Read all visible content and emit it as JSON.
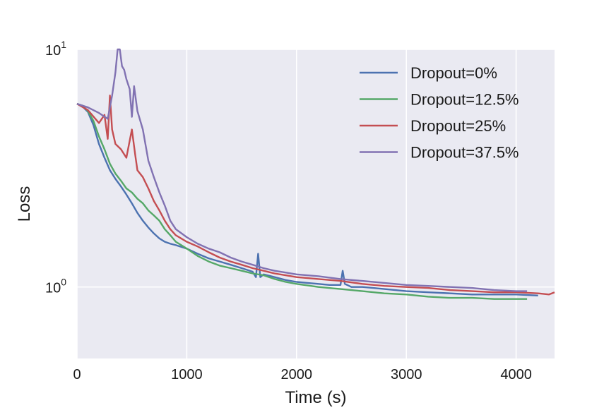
{
  "chart_data": {
    "type": "line",
    "title": "",
    "xlabel": "Time (s)",
    "ylabel": "Loss",
    "xlim": [
      0,
      4350
    ],
    "ylim": [
      0.5,
      10
    ],
    "yscale": "log",
    "grid": true,
    "legend_position": "top-right",
    "x_ticks": [
      {
        "value": 0,
        "label": "0"
      },
      {
        "value": 1000,
        "label": "1000"
      },
      {
        "value": 2000,
        "label": "2000"
      },
      {
        "value": 3000,
        "label": "3000"
      },
      {
        "value": 4000,
        "label": "4000"
      }
    ],
    "y_ticks": [
      {
        "value": 1,
        "base": "10",
        "exp": "0"
      },
      {
        "value": 10,
        "base": "10",
        "exp": "1"
      }
    ],
    "series": [
      {
        "name": "Dropout=0%",
        "color": "#4c72b0",
        "points": [
          [
            0,
            5.9
          ],
          [
            50,
            5.75
          ],
          [
            100,
            5.45
          ],
          [
            150,
            4.8
          ],
          [
            200,
            4.0
          ],
          [
            250,
            3.5
          ],
          [
            300,
            3.1
          ],
          [
            350,
            2.85
          ],
          [
            400,
            2.65
          ],
          [
            450,
            2.45
          ],
          [
            500,
            2.25
          ],
          [
            550,
            2.05
          ],
          [
            600,
            1.9
          ],
          [
            650,
            1.78
          ],
          [
            700,
            1.68
          ],
          [
            750,
            1.6
          ],
          [
            800,
            1.55
          ],
          [
            850,
            1.52
          ],
          [
            900,
            1.5
          ],
          [
            1000,
            1.45
          ],
          [
            1100,
            1.38
          ],
          [
            1200,
            1.32
          ],
          [
            1300,
            1.28
          ],
          [
            1400,
            1.24
          ],
          [
            1500,
            1.2
          ],
          [
            1600,
            1.16
          ],
          [
            1630,
            1.1
          ],
          [
            1650,
            1.38
          ],
          [
            1670,
            1.1
          ],
          [
            1700,
            1.13
          ],
          [
            1800,
            1.1
          ],
          [
            1900,
            1.07
          ],
          [
            2000,
            1.05
          ],
          [
            2100,
            1.04
          ],
          [
            2200,
            1.03
          ],
          [
            2300,
            1.02
          ],
          [
            2400,
            1.02
          ],
          [
            2420,
            1.17
          ],
          [
            2440,
            1.03
          ],
          [
            2500,
            1.0
          ],
          [
            2600,
            1.0
          ],
          [
            2700,
            0.99
          ],
          [
            2800,
            0.98
          ],
          [
            2900,
            0.97
          ],
          [
            3000,
            0.96
          ],
          [
            3200,
            0.95
          ],
          [
            3400,
            0.94
          ],
          [
            3600,
            0.93
          ],
          [
            3800,
            0.93
          ],
          [
            4000,
            0.93
          ],
          [
            4200,
            0.92
          ]
        ]
      },
      {
        "name": "Dropout=12.5%",
        "color": "#55a868",
        "points": [
          [
            0,
            5.9
          ],
          [
            50,
            5.8
          ],
          [
            100,
            5.5
          ],
          [
            150,
            5.0
          ],
          [
            200,
            4.3
          ],
          [
            250,
            3.8
          ],
          [
            300,
            3.3
          ],
          [
            350,
            3.0
          ],
          [
            400,
            2.8
          ],
          [
            450,
            2.6
          ],
          [
            500,
            2.5
          ],
          [
            550,
            2.35
          ],
          [
            600,
            2.25
          ],
          [
            650,
            2.1
          ],
          [
            700,
            2.0
          ],
          [
            750,
            1.9
          ],
          [
            800,
            1.75
          ],
          [
            850,
            1.65
          ],
          [
            900,
            1.55
          ],
          [
            950,
            1.5
          ],
          [
            1000,
            1.45
          ],
          [
            1100,
            1.35
          ],
          [
            1200,
            1.28
          ],
          [
            1300,
            1.23
          ],
          [
            1400,
            1.2
          ],
          [
            1500,
            1.17
          ],
          [
            1600,
            1.14
          ],
          [
            1700,
            1.12
          ],
          [
            1800,
            1.08
          ],
          [
            1900,
            1.05
          ],
          [
            2000,
            1.03
          ],
          [
            2200,
            1.0
          ],
          [
            2400,
            0.98
          ],
          [
            2600,
            0.96
          ],
          [
            2800,
            0.94
          ],
          [
            3000,
            0.93
          ],
          [
            3200,
            0.91
          ],
          [
            3400,
            0.9
          ],
          [
            3600,
            0.9
          ],
          [
            3800,
            0.89
          ],
          [
            4000,
            0.89
          ],
          [
            4100,
            0.89
          ]
        ]
      },
      {
        "name": "Dropout=25%",
        "color": "#c44e52",
        "points": [
          [
            0,
            5.9
          ],
          [
            100,
            5.55
          ],
          [
            200,
            4.9
          ],
          [
            250,
            5.3
          ],
          [
            280,
            4.2
          ],
          [
            300,
            6.4
          ],
          [
            320,
            4.6
          ],
          [
            350,
            4.0
          ],
          [
            400,
            3.8
          ],
          [
            450,
            3.5
          ],
          [
            500,
            4.6
          ],
          [
            530,
            3.6
          ],
          [
            550,
            3.1
          ],
          [
            600,
            2.9
          ],
          [
            650,
            2.6
          ],
          [
            700,
            2.3
          ],
          [
            750,
            2.1
          ],
          [
            800,
            1.9
          ],
          [
            850,
            1.75
          ],
          [
            900,
            1.65
          ],
          [
            1000,
            1.55
          ],
          [
            1100,
            1.48
          ],
          [
            1200,
            1.4
          ],
          [
            1300,
            1.33
          ],
          [
            1400,
            1.28
          ],
          [
            1500,
            1.24
          ],
          [
            1600,
            1.2
          ],
          [
            1700,
            1.17
          ],
          [
            1800,
            1.14
          ],
          [
            1900,
            1.12
          ],
          [
            2000,
            1.1
          ],
          [
            2200,
            1.08
          ],
          [
            2400,
            1.06
          ],
          [
            2600,
            1.03
          ],
          [
            2800,
            1.01
          ],
          [
            3000,
            1.0
          ],
          [
            3200,
            0.99
          ],
          [
            3400,
            0.97
          ],
          [
            3600,
            0.96
          ],
          [
            3800,
            0.95
          ],
          [
            4000,
            0.95
          ],
          [
            4200,
            0.94
          ],
          [
            4300,
            0.93
          ],
          [
            4350,
            0.95
          ]
        ]
      },
      {
        "name": "Dropout=37.5%",
        "color": "#8172b2",
        "points": [
          [
            0,
            5.9
          ],
          [
            100,
            5.7
          ],
          [
            200,
            5.4
          ],
          [
            280,
            5.1
          ],
          [
            320,
            6.4
          ],
          [
            350,
            8.0
          ],
          [
            370,
            10.0
          ],
          [
            390,
            10.0
          ],
          [
            410,
            8.5
          ],
          [
            430,
            8.2
          ],
          [
            450,
            7.5
          ],
          [
            480,
            6.8
          ],
          [
            500,
            5.2
          ],
          [
            520,
            7.0
          ],
          [
            550,
            5.5
          ],
          [
            600,
            4.6
          ],
          [
            650,
            3.4
          ],
          [
            700,
            2.9
          ],
          [
            750,
            2.5
          ],
          [
            800,
            2.2
          ],
          [
            850,
            1.9
          ],
          [
            900,
            1.75
          ],
          [
            1000,
            1.62
          ],
          [
            1100,
            1.52
          ],
          [
            1200,
            1.45
          ],
          [
            1300,
            1.4
          ],
          [
            1400,
            1.33
          ],
          [
            1500,
            1.28
          ],
          [
            1600,
            1.24
          ],
          [
            1700,
            1.2
          ],
          [
            1800,
            1.17
          ],
          [
            1900,
            1.15
          ],
          [
            2000,
            1.13
          ],
          [
            2200,
            1.11
          ],
          [
            2400,
            1.08
          ],
          [
            2600,
            1.06
          ],
          [
            2800,
            1.04
          ],
          [
            3000,
            1.02
          ],
          [
            3200,
            1.01
          ],
          [
            3400,
            1.0
          ],
          [
            3600,
            0.99
          ],
          [
            3800,
            0.97
          ],
          [
            4000,
            0.96
          ],
          [
            4100,
            0.96
          ]
        ]
      }
    ]
  }
}
